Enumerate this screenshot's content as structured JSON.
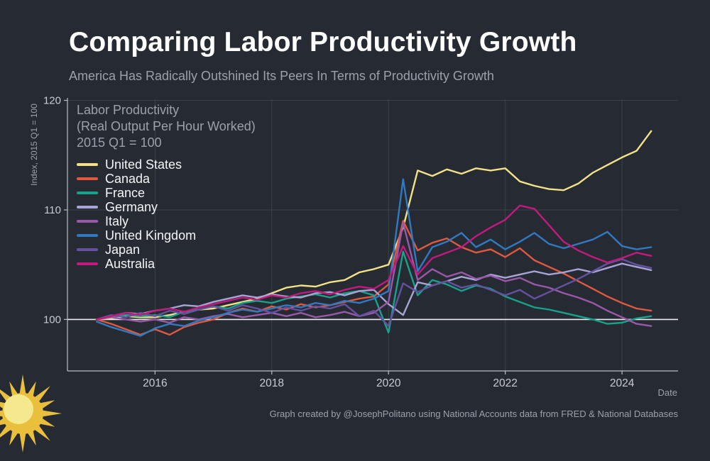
{
  "page": {
    "title": "Comparing Labor Productivity Growth",
    "subtitle": "America Has Radically Outshined Its Peers In Terms of Productivity Growth",
    "credit": "Graph created by @JosephPolitano using National Accounts data from FRED & National Databases"
  },
  "colors": {
    "background": "#262b33",
    "title": "#ffffff",
    "muted_text": "#9aa1a9",
    "axis": "#b9bfc6",
    "grid": "#3b4149",
    "tick": "#c7cbd1",
    "baseline": "#eceff1",
    "sun_ray": "#e9bf3b",
    "sun_disc": "#e9bf3b",
    "sun_highlight": "#f5e98f"
  },
  "chart_data": {
    "type": "line",
    "title": "Labor Productivity",
    "legend_header": [
      "Labor Productivity",
      "(Real Output Per Hour Worked)",
      "2015 Q1 = 100"
    ],
    "xlabel": "Date",
    "ylabel": "Index, 2015 Q1 = 100",
    "xlim": [
      2014.5,
      2024.96
    ],
    "ylim": [
      95.3,
      120.1
    ],
    "xticks": [
      2016,
      2018,
      2020,
      2022,
      2024
    ],
    "yticks": [
      100,
      110,
      120
    ],
    "baseline": 100,
    "grid": true,
    "legend_position": "upper-left-inside",
    "x_start": 2015.0,
    "x_step": 0.25,
    "series": [
      {
        "name": "United States",
        "color": "#f2e189",
        "values": [
          100.0,
          100.1,
          100.3,
          100.2,
          100.2,
          100.4,
          100.7,
          100.9,
          101.0,
          101.3,
          101.6,
          101.9,
          102.4,
          102.9,
          103.1,
          103.0,
          103.4,
          103.6,
          104.3,
          104.6,
          105.0,
          108.4,
          113.6,
          113.1,
          113.7,
          113.3,
          113.8,
          113.6,
          113.8,
          112.6,
          112.2,
          111.9,
          111.8,
          112.4,
          113.4,
          114.1,
          114.8,
          115.4,
          117.2
        ]
      },
      {
        "name": "Canada",
        "color": "#e0593e",
        "values": [
          100.0,
          99.6,
          99.1,
          98.6,
          99.1,
          98.6,
          99.3,
          99.7,
          100.0,
          100.6,
          101.0,
          100.7,
          101.2,
          100.9,
          101.4,
          101.1,
          101.3,
          101.6,
          101.9,
          102.1,
          103.2,
          109.0,
          106.3,
          107.0,
          107.4,
          106.6,
          106.1,
          106.4,
          105.7,
          106.5,
          105.4,
          104.8,
          104.2,
          103.5,
          102.8,
          102.1,
          101.5,
          101.0,
          100.8
        ]
      },
      {
        "name": "France",
        "color": "#18a28b",
        "values": [
          100.0,
          100.2,
          100.4,
          100.3,
          100.4,
          100.2,
          100.7,
          100.9,
          101.2,
          101.0,
          101.5,
          101.7,
          101.5,
          101.9,
          102.1,
          102.3,
          102.0,
          102.4,
          102.6,
          102.2,
          98.8,
          106.2,
          102.2,
          103.6,
          103.2,
          102.6,
          103.1,
          102.8,
          102.1,
          101.6,
          101.1,
          100.9,
          100.6,
          100.3,
          100.0,
          99.6,
          99.7,
          100.1,
          100.3
        ]
      },
      {
        "name": "Germany",
        "color": "#a8a5d6",
        "values": [
          100.0,
          100.3,
          100.6,
          100.5,
          100.8,
          101.0,
          101.3,
          101.2,
          101.6,
          101.9,
          102.2,
          102.0,
          102.3,
          102.1,
          102.0,
          102.4,
          102.5,
          102.2,
          102.6,
          102.7,
          101.4,
          100.4,
          103.4,
          103.1,
          103.5,
          103.9,
          103.6,
          104.1,
          103.8,
          104.1,
          104.4,
          104.1,
          104.3,
          104.6,
          104.3,
          104.7,
          105.1,
          104.8,
          104.5
        ]
      },
      {
        "name": "Italy",
        "color": "#9a58a8",
        "values": [
          100.0,
          100.2,
          100.0,
          99.8,
          100.0,
          99.7,
          100.2,
          100.0,
          100.3,
          100.5,
          100.2,
          100.4,
          100.6,
          100.3,
          100.6,
          100.2,
          100.4,
          100.7,
          100.3,
          100.6,
          101.6,
          108.8,
          103.6,
          104.6,
          103.9,
          104.3,
          103.7,
          104.0,
          103.5,
          103.8,
          103.2,
          102.9,
          102.4,
          102.0,
          101.5,
          100.8,
          100.2,
          99.6,
          99.4
        ]
      },
      {
        "name": "United Kingdom",
        "color": "#3179c1",
        "values": [
          99.8,
          99.3,
          98.9,
          98.5,
          99.2,
          99.6,
          99.4,
          99.9,
          100.2,
          100.6,
          100.9,
          100.7,
          101.0,
          101.3,
          101.1,
          101.5,
          101.3,
          101.7,
          101.5,
          101.9,
          102.6,
          112.8,
          104.4,
          106.6,
          107.1,
          107.9,
          106.6,
          107.3,
          106.4,
          107.1,
          107.9,
          106.9,
          106.5,
          106.9,
          107.3,
          108.0,
          106.7,
          106.4,
          106.6
        ]
      },
      {
        "name": "Japan",
        "color": "#64519f",
        "values": [
          100.0,
          100.4,
          100.2,
          100.6,
          100.3,
          100.8,
          100.5,
          100.9,
          101.2,
          100.8,
          101.3,
          101.0,
          100.6,
          101.1,
          100.8,
          101.2,
          101.0,
          101.4,
          100.3,
          100.8,
          99.4,
          103.3,
          102.5,
          103.1,
          103.5,
          102.9,
          103.2,
          102.7,
          102.2,
          102.7,
          101.9,
          102.5,
          103.1,
          103.7,
          104.4,
          105.1,
          105.5,
          105.0,
          104.7
        ]
      },
      {
        "name": "Australia",
        "color": "#c21a7d",
        "values": [
          100.0,
          100.3,
          100.6,
          100.4,
          100.8,
          101.0,
          100.7,
          101.1,
          101.4,
          101.7,
          102.0,
          101.8,
          102.2,
          102.0,
          102.4,
          102.6,
          102.3,
          102.7,
          103.0,
          102.8,
          103.6,
          106.7,
          104.1,
          105.6,
          106.1,
          106.6,
          107.6,
          108.4,
          109.1,
          110.4,
          110.1,
          108.6,
          107.1,
          106.3,
          105.7,
          105.2,
          105.6,
          106.1,
          105.8
        ]
      }
    ]
  }
}
